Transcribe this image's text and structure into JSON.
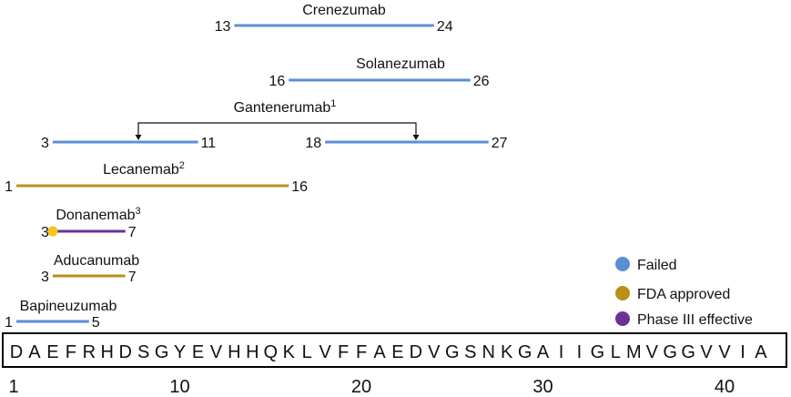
{
  "sequence": [
    "D",
    "A",
    "E",
    "F",
    "R",
    "H",
    "D",
    "S",
    "G",
    "Y",
    "E",
    "V",
    "H",
    "H",
    "Q",
    "K",
    "L",
    "V",
    "F",
    "F",
    "A",
    "E",
    "D",
    "V",
    "G",
    "S",
    "N",
    "K",
    "G",
    "A",
    "I",
    "I",
    "G",
    "L",
    "M",
    "V",
    "G",
    "G",
    "V",
    "V",
    "I",
    "A"
  ],
  "position_ticks": [
    "1",
    "10",
    "20",
    "30",
    "40"
  ],
  "antibodies": [
    {
      "name": "Crenezumab",
      "superscript": "",
      "status": "failed",
      "segments": [
        {
          "start": 13,
          "end": 24,
          "start_label": "13",
          "end_label": "24"
        }
      ]
    },
    {
      "name": "Solanezumab",
      "superscript": "",
      "status": "failed",
      "segments": [
        {
          "start": 16,
          "end": 26,
          "start_label": "16",
          "end_label": "26"
        }
      ]
    },
    {
      "name": "Gantenerumab",
      "superscript": "1",
      "status": "failed",
      "segments": [
        {
          "start": 3,
          "end": 11,
          "start_label": "3",
          "end_label": "11"
        },
        {
          "start": 18,
          "end": 27,
          "start_label": "18",
          "end_label": "27"
        }
      ]
    },
    {
      "name": "Lecanemab",
      "superscript": "2",
      "status": "fda",
      "segments": [
        {
          "start": 1,
          "end": 16,
          "start_label": "1",
          "end_label": "16"
        }
      ]
    },
    {
      "name": "Donanemab",
      "superscript": "3",
      "status": "phase3",
      "pyroglutamate": true,
      "segments": [
        {
          "start": 3,
          "end": 7,
          "start_label": "3",
          "end_label": "7"
        }
      ]
    },
    {
      "name": "Aducanumab",
      "superscript": "",
      "status": "fda",
      "segments": [
        {
          "start": 3,
          "end": 7,
          "start_label": "3",
          "end_label": "7"
        }
      ]
    },
    {
      "name": "Bapineuzumab",
      "superscript": "",
      "status": "failed",
      "segments": [
        {
          "start": 1,
          "end": 5,
          "start_label": "1",
          "end_label": "5"
        }
      ]
    }
  ],
  "legend": [
    {
      "key": "failed",
      "label": "Failed",
      "color": "#5b8fd3"
    },
    {
      "key": "fda",
      "label": "FDA approved",
      "color": "#b8901a"
    },
    {
      "key": "phase3",
      "label": "Phase III effective",
      "color": "#6a3296"
    }
  ],
  "colors": {
    "pyroglutamate_marker": "#f5c518",
    "box_border": "#000000"
  }
}
